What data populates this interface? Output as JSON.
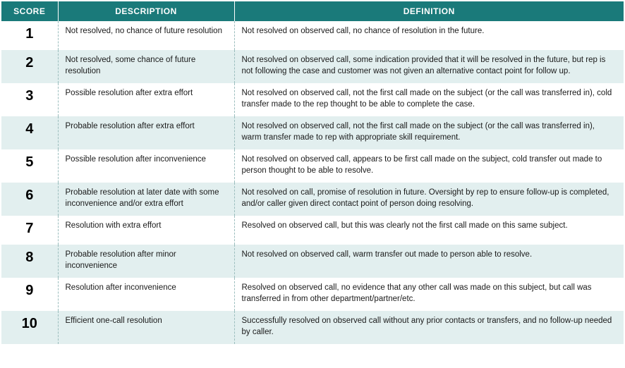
{
  "header": {
    "score": "SCORE",
    "description": "DESCRIPTION",
    "definition": "DEFINITION"
  },
  "rows": [
    {
      "score": "1",
      "description": "Not resolved, no chance of future resolution",
      "definition": "Not resolved on observed call, no chance of resolution in the future."
    },
    {
      "score": "2",
      "description": "Not resolved, some chance of future resolution",
      "definition": "Not resolved on observed call, some indication provided that it will be resolved in the future, but rep is not following the case and customer was not given an alternative contact point for follow up."
    },
    {
      "score": "3",
      "description": "Possible resolution after extra effort",
      "definition": "Not resolved on observed call, not the first call made on the subject (or the call was transferred in), cold transfer made to the rep thought to be able to complete the case."
    },
    {
      "score": "4",
      "description": "Probable resolution after extra effort",
      "definition": "Not resolved on observed call, not the first call made on the subject (or the call was transferred in), warm transfer made to rep with appropriate skill requirement."
    },
    {
      "score": "5",
      "description": "Possible resolution after inconvenience",
      "definition": "Not resolved on observed call, appears to be first call made on the subject, cold transfer out made to person thought to be able to resolve."
    },
    {
      "score": "6",
      "description": "Probable resolution at later date with some inconvenience and/or extra effort",
      "definition": "Not resolved on call, promise of resolution in future. Oversight by rep to ensure follow-up is completed, and/or caller given direct contact point of person doing resolving."
    },
    {
      "score": "7",
      "description": "Resolution with extra effort",
      "definition": "Resolved on observed call, but this was clearly not the first call made on this same subject."
    },
    {
      "score": "8",
      "description": "Probable resolution after minor inconvenience",
      "definition": "Not resolved on observed call, warm transfer out made to person able to resolve."
    },
    {
      "score": "9",
      "description": "Resolution after inconvenience",
      "definition": "Resolved on observed call, no evidence that any other call was made on this subject, but call was transferred in from other department/partner/etc."
    },
    {
      "score": "10",
      "description": "Efficient one-call resolution",
      "definition": "Successfully resolved on observed call without any prior contacts or transfers, and no follow-up needed by caller."
    }
  ]
}
